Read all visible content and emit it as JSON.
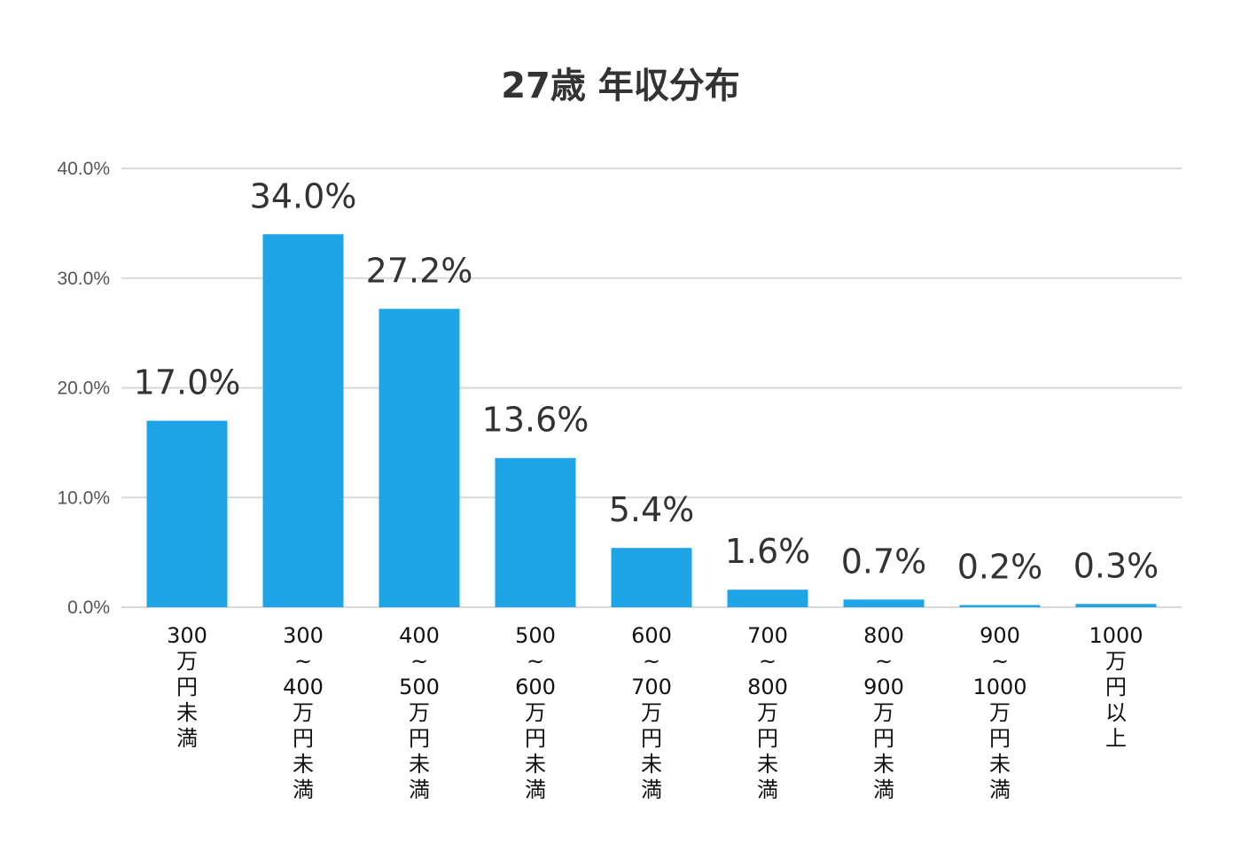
{
  "chart_data": {
    "type": "bar",
    "title": "27歳 年収分布",
    "xlabel": "",
    "ylabel": "",
    "ylim": [
      0,
      40
    ],
    "y_ticks": [
      "0.0%",
      "10.0%",
      "20.0%",
      "30.0%",
      "40.0%"
    ],
    "grid": true,
    "categories": [
      [
        "300",
        "万",
        "円",
        "未",
        "満"
      ],
      [
        "300",
        "~",
        "400",
        "万",
        "円",
        "未",
        "満"
      ],
      [
        "400",
        "~",
        "500",
        "万",
        "円",
        "未",
        "満"
      ],
      [
        "500",
        "~",
        "600",
        "万",
        "円",
        "未",
        "満"
      ],
      [
        "600",
        "~",
        "700",
        "万",
        "円",
        "未",
        "満"
      ],
      [
        "700",
        "~",
        "800",
        "万",
        "円",
        "未",
        "満"
      ],
      [
        "800",
        "~",
        "900",
        "万",
        "円",
        "未",
        "満"
      ],
      [
        "900",
        "~",
        "1000",
        "万",
        "円",
        "未",
        "満"
      ],
      [
        "1000",
        "万",
        "円",
        "以",
        "上"
      ]
    ],
    "values": [
      17.0,
      34.0,
      27.2,
      13.6,
      5.4,
      1.6,
      0.7,
      0.2,
      0.3
    ],
    "data_labels": [
      "17.0%",
      "34.0%",
      "27.2%",
      "13.6%",
      "5.4%",
      "1.6%",
      "0.7%",
      "0.2%",
      "0.3%"
    ],
    "bar_color": "#1EA5E7",
    "grid_color": "#D9D9D9"
  }
}
